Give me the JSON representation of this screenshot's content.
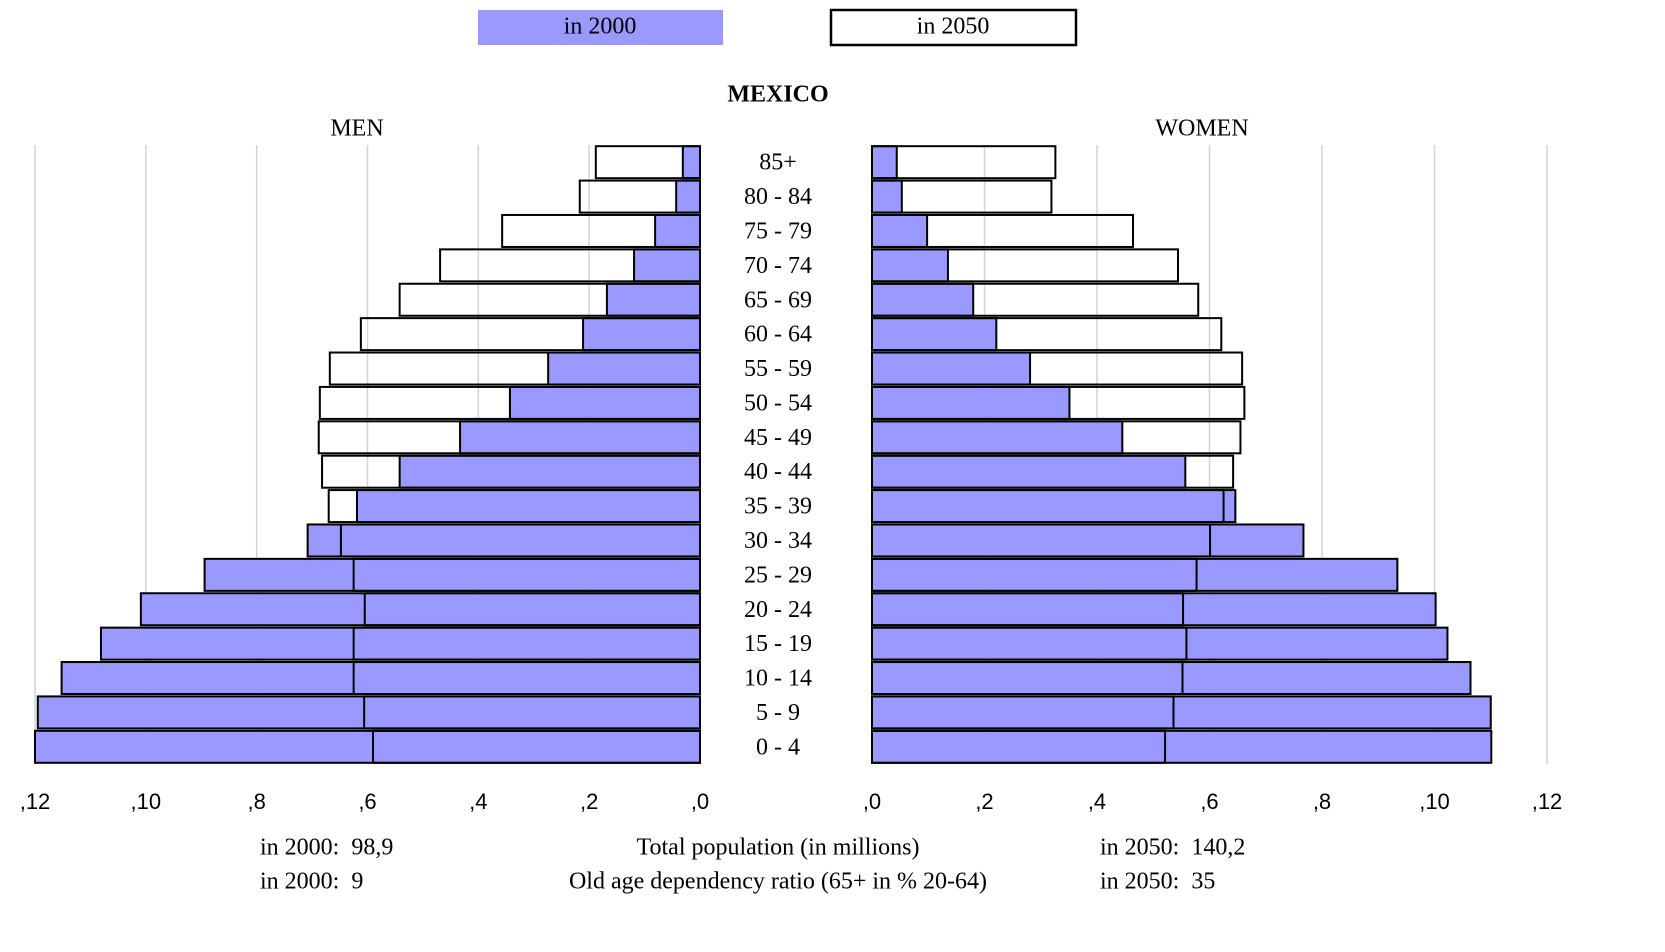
{
  "chart_data": {
    "type": "pyramid",
    "title": "MEXICO",
    "left_label": "MEN",
    "right_label": "WOMEN",
    "categories": [
      "85+",
      "80 - 84",
      "75 - 79",
      "70 - 74",
      "65 - 69",
      "60 - 64",
      "55 - 59",
      "50 - 54",
      "45 - 49",
      "40 - 44",
      "35 - 39",
      "30 - 34",
      "25 - 29",
      "20 - 24",
      "15 - 19",
      "10 - 14",
      "5 - 9",
      "0 - 4"
    ],
    "series": [
      {
        "name": "in 2000",
        "color": "#9999ff",
        "filled": true,
        "men": [
          0.31,
          0.43,
          0.81,
          1.19,
          1.68,
          2.11,
          2.74,
          3.43,
          4.33,
          5.42,
          6.19,
          7.08,
          8.94,
          10.09,
          10.81,
          11.52,
          11.95,
          12.0
        ],
        "women": [
          0.44,
          0.53,
          0.98,
          1.35,
          1.8,
          2.21,
          2.81,
          3.51,
          4.45,
          5.57,
          6.46,
          7.67,
          9.34,
          10.02,
          10.23,
          10.64,
          11.0,
          11.01
        ]
      },
      {
        "name": "in 2050",
        "color": "#000000",
        "filled": false,
        "men": [
          1.88,
          2.17,
          3.57,
          4.69,
          5.42,
          6.12,
          6.68,
          6.86,
          6.88,
          6.82,
          6.7,
          6.48,
          6.25,
          6.05,
          6.25,
          6.25,
          6.06,
          5.9
        ],
        "women": [
          3.26,
          3.19,
          4.64,
          5.44,
          5.8,
          6.21,
          6.58,
          6.62,
          6.55,
          6.42,
          6.25,
          6.01,
          5.77,
          5.53,
          5.59,
          5.52,
          5.36,
          5.21
        ]
      }
    ],
    "xlim": [
      0,
      12
    ],
    "xticks": [
      {
        "value": 12,
        "label": ",12"
      },
      {
        "value": 10,
        "label": ",10"
      },
      {
        "value": 8,
        "label": ",8"
      },
      {
        "value": 6,
        "label": ",6"
      },
      {
        "value": 4,
        "label": ",4"
      },
      {
        "value": 2,
        "label": ",2"
      },
      {
        "value": 0,
        "label": ",0"
      }
    ],
    "grid": true,
    "footer": [
      {
        "left": "in 2000:  98,9",
        "center": "Total population (in millions)",
        "right": "in 2050:  140,2"
      },
      {
        "left": "in 2000:  9",
        "center": "Old age dependency ratio (65+ in % 20-64)",
        "right": "in 2050:  35"
      }
    ]
  }
}
